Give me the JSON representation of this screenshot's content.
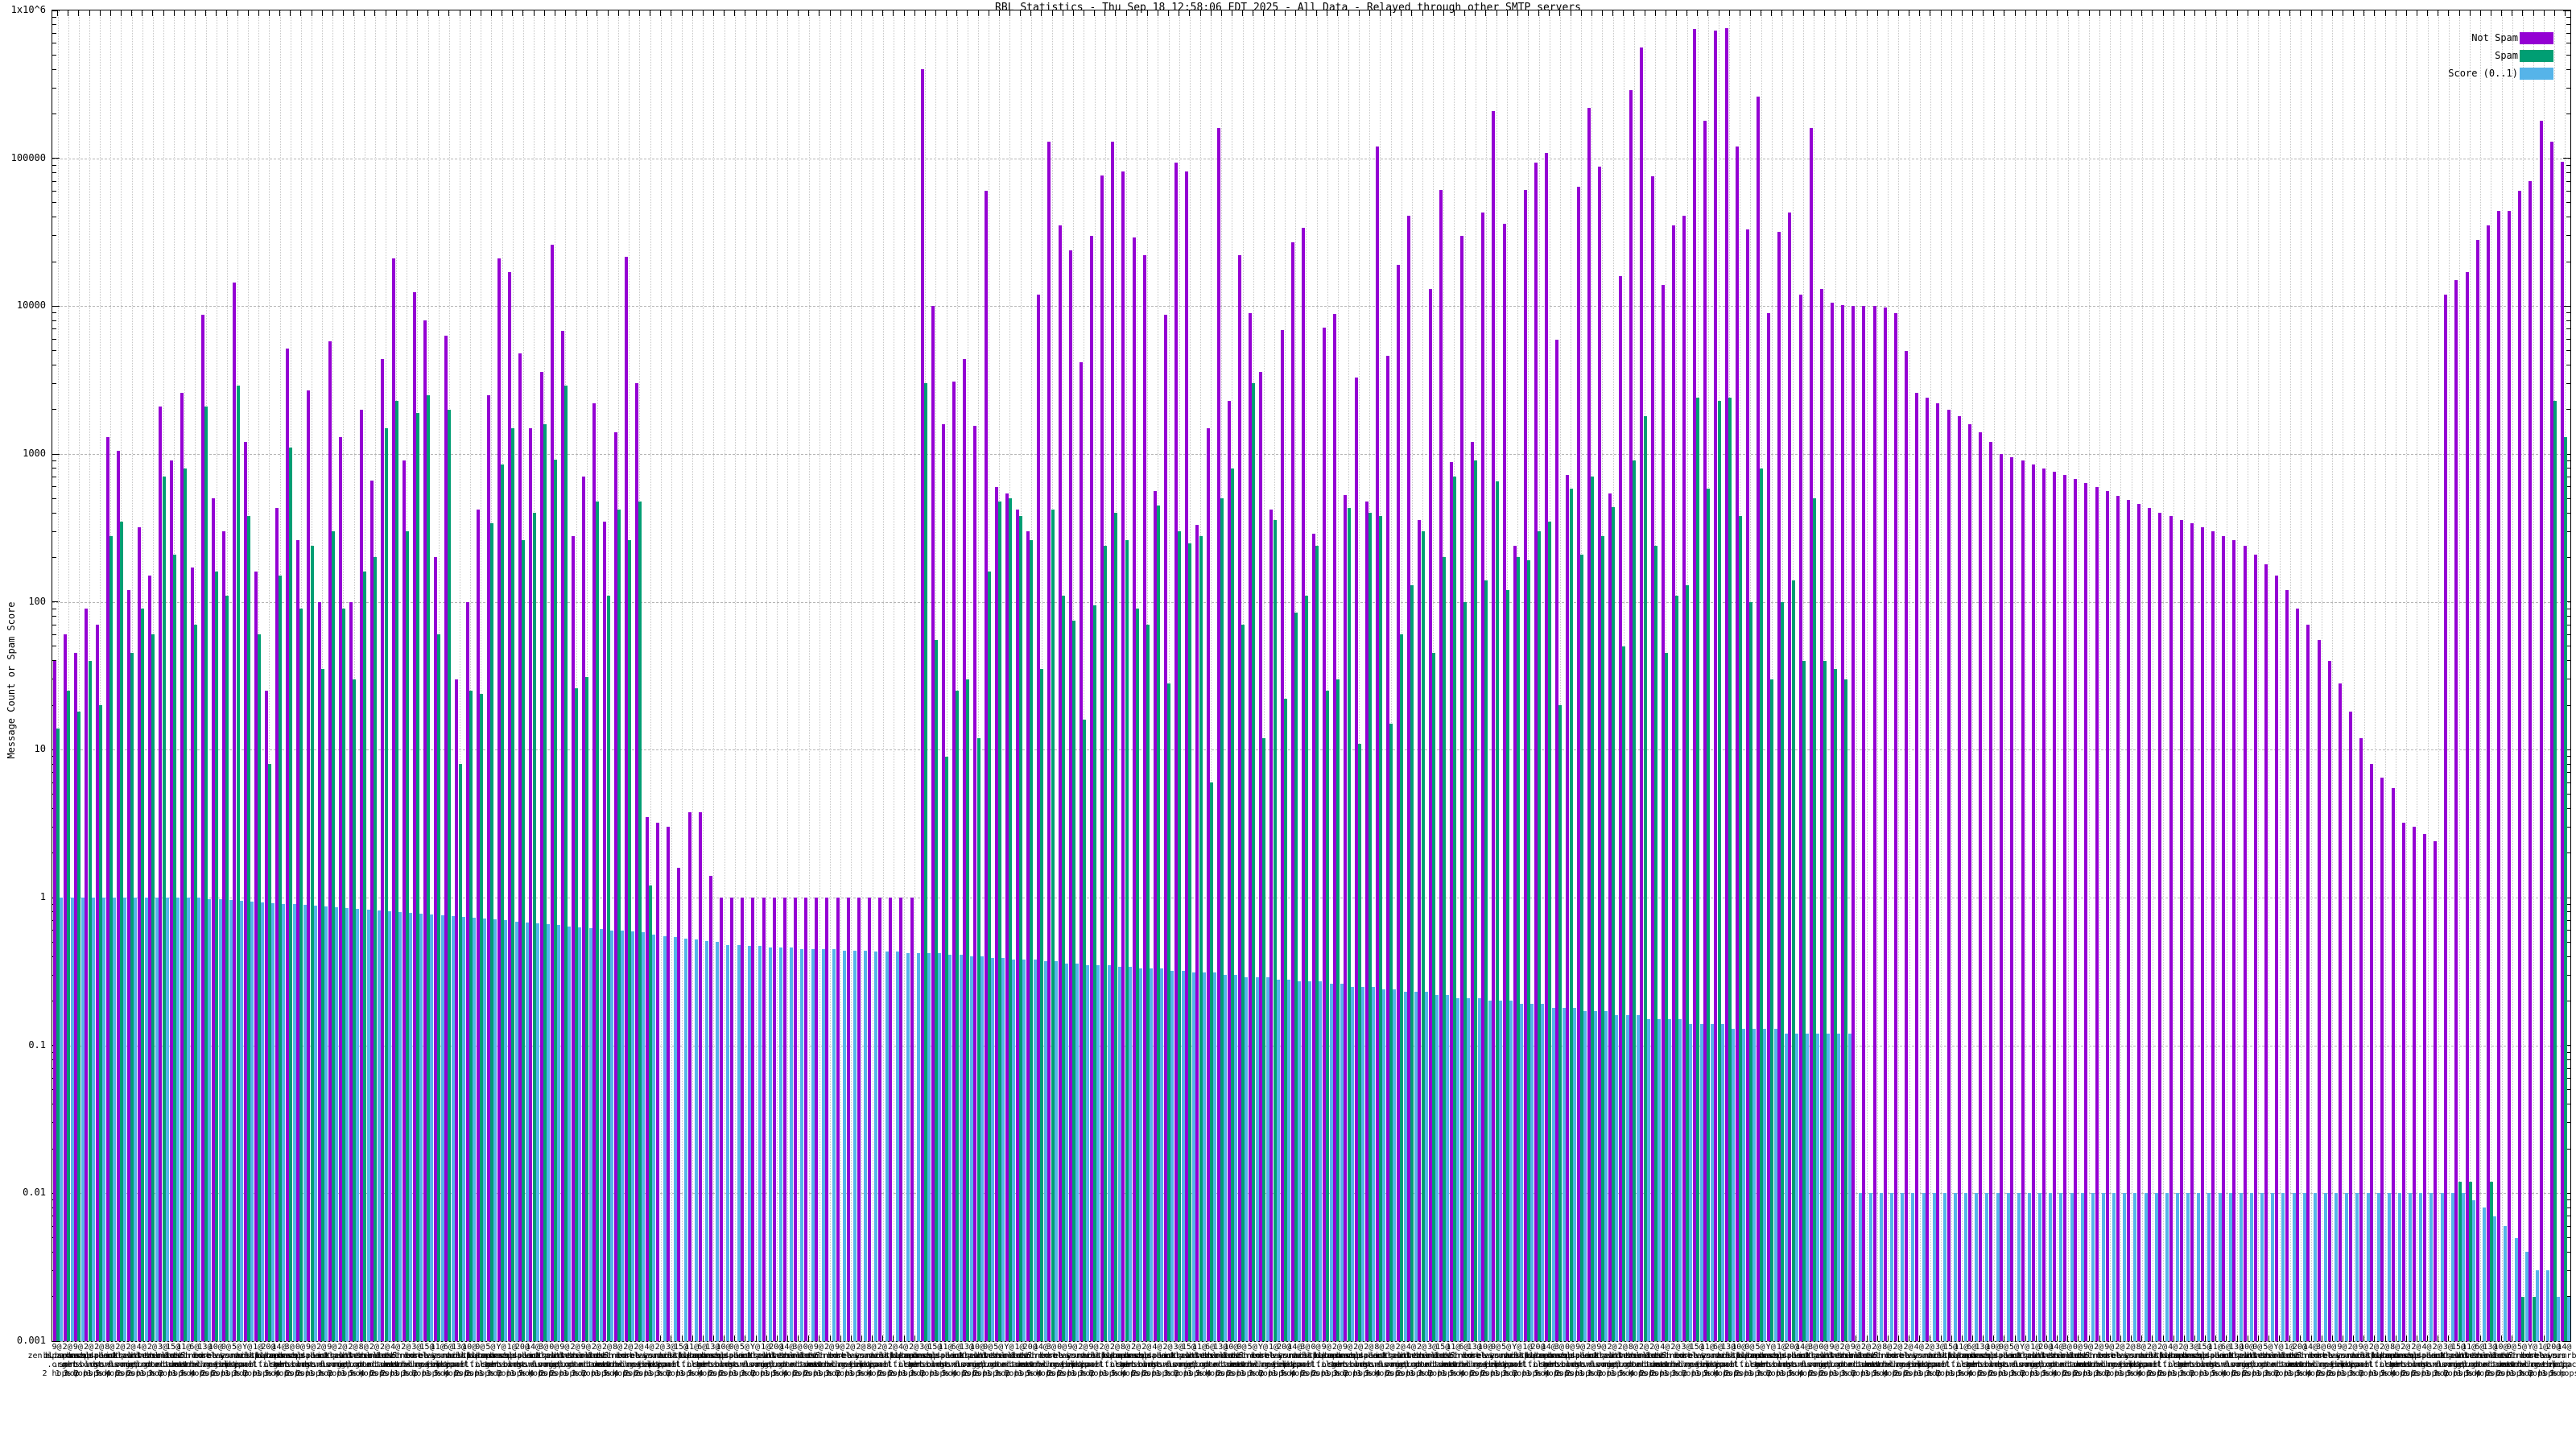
{
  "title": "RBL Statistics - Thu Sep 18 12:58:06 EDT 2025 - All Data - Relayed through other SMTP servers",
  "y_axis": {
    "label": "Message Count or Spam Score",
    "ticks": [
      "1x10^6",
      "100000",
      "10000",
      "1000",
      "100",
      "10",
      "1",
      "0.1",
      "0.01",
      "0.001"
    ],
    "min": 0.001,
    "max": 1000000,
    "scale": "log"
  },
  "legend": [
    {
      "label": "Not Spam",
      "color": "#9400d3"
    },
    {
      "label": "Spam",
      "color": "#009e73"
    },
    {
      "label": "Score (0..1)",
      "color": "#56b4e9"
    }
  ],
  "grid_color": "#c6c6c6",
  "chart_data": {
    "type": "bar",
    "scale": "log",
    "title": "RBL Statistics - Thu Sep 18 12:58:06 EDT 2025 - All Data - Relayed through other SMTP servers",
    "ylabel": "Message Count or Spam Score",
    "ylim": [
      0.001,
      1000000
    ],
    "legend_position": "top-right",
    "grid": true,
    "series_names": [
      "Not Spam",
      "Spam",
      "Score (0..1)"
    ],
    "groups": [
      [
        40,
        14,
        1
      ],
      [
        60,
        25,
        1
      ],
      [
        45,
        18,
        1
      ],
      [
        90,
        40,
        1
      ],
      [
        70,
        20,
        1
      ],
      [
        1300,
        280,
        1
      ],
      [
        1050,
        350,
        1
      ],
      [
        120,
        45,
        1
      ],
      [
        320,
        90,
        1
      ],
      [
        150,
        60,
        1
      ],
      [
        2100,
        700,
        1
      ],
      [
        900,
        210,
        1
      ],
      [
        2600,
        800,
        1
      ],
      [
        170,
        70,
        1
      ],
      [
        8800,
        2100,
        0.98
      ],
      [
        500,
        160,
        0.97
      ],
      [
        300,
        110,
        0.96
      ],
      [
        14500,
        2900,
        0.95
      ],
      [
        1200,
        380,
        0.94
      ],
      [
        160,
        60,
        0.93
      ],
      [
        25,
        8,
        0.92
      ],
      [
        430,
        150,
        0.91
      ],
      [
        5200,
        1100,
        0.9
      ],
      [
        260,
        90,
        0.89
      ],
      [
        2700,
        240,
        0.88
      ],
      [
        100,
        35,
        0.87
      ],
      [
        5800,
        300,
        0.86
      ],
      [
        1300,
        90,
        0.85
      ],
      [
        100,
        30,
        0.84
      ],
      [
        2000,
        160,
        0.83
      ],
      [
        660,
        200,
        0.82
      ],
      [
        4400,
        1500,
        0.81
      ],
      [
        21000,
        2300,
        0.8
      ],
      [
        900,
        300,
        0.79
      ],
      [
        12500,
        1900,
        0.78
      ],
      [
        8000,
        2500,
        0.77
      ],
      [
        200,
        60,
        0.76
      ],
      [
        6300,
        2000,
        0.75
      ],
      [
        30,
        8,
        0.74
      ],
      [
        100,
        25,
        0.73
      ],
      [
        420,
        24,
        0.72
      ],
      [
        2500,
        340,
        0.71
      ],
      [
        21000,
        850,
        0.7
      ],
      [
        17000,
        1500,
        0.69
      ],
      [
        4800,
        260,
        0.68
      ],
      [
        1500,
        400,
        0.67
      ],
      [
        3600,
        1600,
        0.66
      ],
      [
        26000,
        920,
        0.65
      ],
      [
        6800,
        2900,
        0.64
      ],
      [
        280,
        26,
        0.63
      ],
      [
        700,
        31,
        0.62
      ],
      [
        2200,
        480,
        0.61
      ],
      [
        350,
        110,
        0.6
      ],
      [
        1400,
        420,
        0.6
      ],
      [
        21500,
        260,
        0.59
      ],
      [
        3000,
        480,
        0.58
      ],
      [
        3.5,
        1.2,
        0.56
      ],
      [
        3.2,
        0,
        0.55
      ],
      [
        3,
        0,
        0.54
      ],
      [
        1.6,
        0,
        0.53
      ],
      [
        3.8,
        0,
        0.52
      ],
      [
        3.8,
        0,
        0.51
      ],
      [
        1.4,
        0,
        0.5
      ],
      [
        1,
        0,
        0.48
      ],
      [
        1,
        0,
        0.48
      ],
      [
        1,
        0,
        0.47
      ],
      [
        1,
        0,
        0.47
      ],
      [
        1,
        0,
        0.46
      ],
      [
        1,
        0,
        0.46
      ],
      [
        1,
        0,
        0.46
      ],
      [
        1,
        0,
        0.45
      ],
      [
        1,
        0,
        0.45
      ],
      [
        1,
        0,
        0.45
      ],
      [
        1,
        0,
        0.45
      ],
      [
        1,
        0,
        0.44
      ],
      [
        1,
        0,
        0.44
      ],
      [
        1,
        0,
        0.44
      ],
      [
        1,
        0,
        0.43
      ],
      [
        1,
        0,
        0.43
      ],
      [
        1,
        0,
        0.43
      ],
      [
        1,
        0,
        0.42
      ],
      [
        1,
        0,
        0.42
      ],
      [
        400000,
        3000,
        0.42
      ],
      [
        10000,
        55,
        0.42
      ],
      [
        1600,
        9,
        0.41
      ],
      [
        3100,
        25,
        0.41
      ],
      [
        4400,
        30,
        0.4
      ],
      [
        1550,
        12,
        0.4
      ],
      [
        60000,
        160,
        0.39
      ],
      [
        600,
        480,
        0.39
      ],
      [
        540,
        500,
        0.38
      ],
      [
        420,
        380,
        0.38
      ],
      [
        300,
        260,
        0.38
      ],
      [
        12000,
        35,
        0.37
      ],
      [
        130000,
        420,
        0.37
      ],
      [
        35000,
        110,
        0.36
      ],
      [
        24000,
        75,
        0.36
      ],
      [
        4200,
        16,
        0.35
      ],
      [
        30000,
        95,
        0.35
      ],
      [
        77000,
        240,
        0.35
      ],
      [
        130000,
        400,
        0.34
      ],
      [
        81000,
        260,
        0.34
      ],
      [
        29000,
        90,
        0.33
      ],
      [
        22000,
        70,
        0.33
      ],
      [
        560,
        450,
        0.33
      ],
      [
        8700,
        28,
        0.32
      ],
      [
        94000,
        300,
        0.32
      ],
      [
        81000,
        250,
        0.31
      ],
      [
        330,
        280,
        0.31
      ],
      [
        1500,
        6,
        0.31
      ],
      [
        160000,
        500,
        0.3
      ],
      [
        2300,
        800,
        0.3
      ],
      [
        22000,
        70,
        0.29
      ],
      [
        9000,
        3000,
        0.29
      ],
      [
        3600,
        12,
        0.29
      ],
      [
        420,
        360,
        0.28
      ],
      [
        6900,
        22,
        0.28
      ],
      [
        27000,
        85,
        0.27
      ],
      [
        34000,
        110,
        0.27
      ],
      [
        290,
        240,
        0.27
      ],
      [
        7200,
        25,
        0.26
      ],
      [
        8900,
        30,
        0.26
      ],
      [
        530,
        430,
        0.25
      ],
      [
        3300,
        11,
        0.25
      ],
      [
        480,
        400,
        0.25
      ],
      [
        120000,
        380,
        0.24
      ],
      [
        4600,
        15,
        0.24
      ],
      [
        19000,
        60,
        0.23
      ],
      [
        41000,
        130,
        0.23
      ],
      [
        360,
        300,
        0.23
      ],
      [
        13000,
        45,
        0.22
      ],
      [
        61000,
        200,
        0.22
      ],
      [
        880,
        700,
        0.21
      ],
      [
        30000,
        100,
        0.21
      ],
      [
        1200,
        900,
        0.21
      ],
      [
        43000,
        140,
        0.2
      ],
      [
        210000,
        650,
        0.2
      ],
      [
        36000,
        120,
        0.2
      ],
      [
        240,
        200,
        0.19
      ],
      [
        61000,
        190,
        0.19
      ],
      [
        93000,
        300,
        0.19
      ],
      [
        109000,
        350,
        0.18
      ],
      [
        5900,
        20,
        0.18
      ],
      [
        720,
        580,
        0.18
      ],
      [
        64000,
        210,
        0.17
      ],
      [
        220000,
        700,
        0.17
      ],
      [
        88000,
        280,
        0.17
      ],
      [
        540,
        440,
        0.16
      ],
      [
        16000,
        50,
        0.16
      ],
      [
        290000,
        900,
        0.16
      ],
      [
        560000,
        1800,
        0.15
      ],
      [
        76000,
        240,
        0.15
      ],
      [
        14000,
        45,
        0.15
      ],
      [
        35000,
        110,
        0.15
      ],
      [
        41000,
        130,
        0.14
      ],
      [
        750000,
        2400,
        0.14
      ],
      [
        180000,
        580,
        0.14
      ],
      [
        730000,
        2300,
        0.14
      ],
      [
        760000,
        2400,
        0.13
      ],
      [
        120000,
        380,
        0.13
      ],
      [
        33000,
        100,
        0.13
      ],
      [
        260000,
        800,
        0.13
      ],
      [
        9000,
        30,
        0.13
      ],
      [
        32000,
        100,
        0.12
      ],
      [
        43000,
        140,
        0.12
      ],
      [
        12000,
        40,
        0.12
      ],
      [
        160000,
        500,
        0.12
      ],
      [
        13000,
        40,
        0.12
      ],
      [
        10500,
        35,
        0.12
      ],
      [
        10200,
        30,
        0.12
      ],
      [
        10000,
        0,
        0.01
      ],
      [
        10000,
        0,
        0.01
      ],
      [
        10000,
        0,
        0.01
      ],
      [
        9800,
        0,
        0.01
      ],
      [
        9000,
        0,
        0.01
      ],
      [
        5000,
        0,
        0.01
      ],
      [
        2600,
        0,
        0.01
      ],
      [
        2400,
        0,
        0.01
      ],
      [
        2200,
        0,
        0.01
      ],
      [
        2000,
        0,
        0.01
      ],
      [
        1800,
        0,
        0.01
      ],
      [
        1600,
        0,
        0.01
      ],
      [
        1400,
        0,
        0.01
      ],
      [
        1200,
        0,
        0.01
      ],
      [
        1000,
        0,
        0.01
      ],
      [
        950,
        0,
        0.01
      ],
      [
        900,
        0,
        0.01
      ],
      [
        850,
        0,
        0.01
      ],
      [
        800,
        0,
        0.01
      ],
      [
        760,
        0,
        0.01
      ],
      [
        720,
        0,
        0.01
      ],
      [
        680,
        0,
        0.01
      ],
      [
        640,
        0,
        0.01
      ],
      [
        600,
        0,
        0.01
      ],
      [
        560,
        0,
        0.01
      ],
      [
        520,
        0,
        0.01
      ],
      [
        490,
        0,
        0.01
      ],
      [
        460,
        0,
        0.01
      ],
      [
        430,
        0,
        0.01
      ],
      [
        400,
        0,
        0.01
      ],
      [
        380,
        0,
        0.01
      ],
      [
        360,
        0,
        0.01
      ],
      [
        340,
        0,
        0.01
      ],
      [
        320,
        0,
        0.01
      ],
      [
        300,
        0,
        0.01
      ],
      [
        280,
        0,
        0.01
      ],
      [
        260,
        0,
        0.01
      ],
      [
        240,
        0,
        0.01
      ],
      [
        210,
        0,
        0.01
      ],
      [
        180,
        0,
        0.01
      ],
      [
        150,
        0,
        0.01
      ],
      [
        120,
        0,
        0.01
      ],
      [
        90,
        0,
        0.01
      ],
      [
        70,
        0,
        0.01
      ],
      [
        55,
        0,
        0.01
      ],
      [
        40,
        0,
        0.01
      ],
      [
        28,
        0,
        0.01
      ],
      [
        18,
        0,
        0.01
      ],
      [
        12,
        0,
        0.01
      ],
      [
        8,
        0,
        0.01
      ],
      [
        6.5,
        0,
        0.01
      ],
      [
        5.5,
        0,
        0.01
      ],
      [
        3.2,
        0,
        0.01
      ],
      [
        3,
        0,
        0.01
      ],
      [
        2.7,
        0,
        0.01
      ],
      [
        2.4,
        0,
        0.01
      ],
      [
        12000,
        0,
        0.01
      ],
      [
        15000,
        0.012,
        0.01
      ],
      [
        17000,
        0.012,
        0.009
      ],
      [
        28000,
        0,
        0.008
      ],
      [
        35000,
        0.012,
        0.007
      ],
      [
        44000,
        0,
        0.006
      ],
      [
        44000,
        0,
        0.005
      ],
      [
        60000,
        0.002,
        0.004
      ],
      [
        70000,
        0.002,
        0.003
      ],
      [
        180000,
        0,
        0.003
      ],
      [
        130000,
        2300,
        0.002
      ],
      [
        95000,
        1300,
        0.002
      ]
    ],
    "x_label_pools": {
      "scores": [
        "9",
        "2",
        "9",
        "2",
        "2",
        "8",
        "2",
        "2",
        "4",
        "2",
        "3",
        "15",
        "11",
        "6",
        "13",
        "10",
        "0",
        "5",
        "Y",
        "1",
        "20",
        "14",
        "3",
        "0"
      ],
      "hosts": [
        "zen.spamhaus.org",
        "bl.spamcop.net",
        "dnsbl.sorbs.net",
        "b.barracudacentral.org",
        "spam.dnsbl.sorbs.net",
        "list.dnswl.org",
        "ips.backscatterer.org",
        "psbl.surriel.com",
        "ubl.unsubscore.com",
        "dnsbl-1.uceprotect.net",
        "truncate.gbudb.net",
        "all.s5h.net",
        "combined.abuse.ch",
        "dul.dnsbl.sorbs.net",
        "korea.services.net",
        "relays.bl.gweep.ca",
        "virus.rbl.jp",
        "wormrbl.imp.ch",
        "z.mailspike.net",
        "hostkarma.junkemailfilter.com"
      ],
      "hops": [
        "2 hops",
        "1 hop",
        "3 hops",
        "2 hops",
        "1 hop",
        "5 hops",
        "4 hops",
        "2 hops"
      ]
    }
  }
}
